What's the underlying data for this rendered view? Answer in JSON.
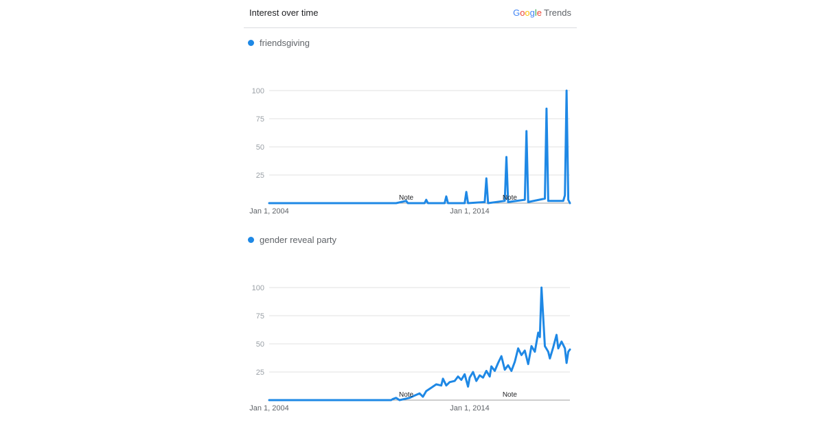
{
  "header": {
    "title": "Interest over time",
    "logo": {
      "letters": [
        {
          "ch": "G",
          "color": "#4285F4"
        },
        {
          "ch": "o",
          "color": "#EA4335"
        },
        {
          "ch": "o",
          "color": "#FBBC05"
        },
        {
          "ch": "g",
          "color": "#4285F4"
        },
        {
          "ch": "l",
          "color": "#34A853"
        },
        {
          "ch": "e",
          "color": "#EA4335"
        }
      ],
      "suffix": "Trends"
    }
  },
  "colors": {
    "series": "#1e88e5",
    "grid": "#e0e0e0",
    "axis": "#9e9e9e"
  },
  "chart_data": [
    {
      "type": "line",
      "title": "",
      "series": [
        {
          "name": "friendsgiving",
          "points": [
            [
              "2004-01",
              0
            ],
            [
              "2010-05",
              0
            ],
            [
              "2010-11",
              2
            ],
            [
              "2010-12",
              0
            ],
            [
              "2011-10",
              0
            ],
            [
              "2011-11",
              3
            ],
            [
              "2011-12",
              0
            ],
            [
              "2012-10",
              0
            ],
            [
              "2012-11",
              6
            ],
            [
              "2012-12",
              0
            ],
            [
              "2013-10",
              0
            ],
            [
              "2013-11",
              10
            ],
            [
              "2013-12",
              0
            ],
            [
              "2014-10",
              1
            ],
            [
              "2014-11",
              22
            ],
            [
              "2014-12",
              0
            ],
            [
              "2015-10",
              2
            ],
            [
              "2015-11",
              41
            ],
            [
              "2015-12",
              1
            ],
            [
              "2016-10",
              3
            ],
            [
              "2016-11",
              64
            ],
            [
              "2016-12",
              1
            ],
            [
              "2017-10",
              4
            ],
            [
              "2017-11",
              84
            ],
            [
              "2017-12",
              2
            ],
            [
              "2018-09",
              2
            ],
            [
              "2018-10",
              7
            ],
            [
              "2018-11",
              100
            ],
            [
              "2018-12",
              3
            ],
            [
              "2019-01",
              0
            ]
          ]
        }
      ],
      "yticks": [
        100,
        75,
        50,
        25
      ],
      "ylim": [
        0,
        100
      ],
      "xlim": [
        "2004-01",
        "2019-01"
      ],
      "xticks": [
        {
          "label": "Jan 1, 2004",
          "at": "2004-01"
        },
        {
          "label": "Jan 1, 2014",
          "at": "2014-01"
        }
      ],
      "notes": [
        {
          "label": "Note",
          "at": "2010-11"
        },
        {
          "label": "Note",
          "at": "2016-01"
        }
      ],
      "grid": true
    },
    {
      "type": "line",
      "title": "",
      "series": [
        {
          "name": "gender reveal party",
          "points": [
            [
              "2004-01",
              0
            ],
            [
              "2010-02",
              0
            ],
            [
              "2010-03",
              1
            ],
            [
              "2010-05",
              2
            ],
            [
              "2010-07",
              0
            ],
            [
              "2010-10",
              1
            ],
            [
              "2011-01",
              2
            ],
            [
              "2011-04",
              4
            ],
            [
              "2011-07",
              6
            ],
            [
              "2011-09",
              3
            ],
            [
              "2011-11",
              8
            ],
            [
              "2012-02",
              11
            ],
            [
              "2012-05",
              14
            ],
            [
              "2012-08",
              13
            ],
            [
              "2012-09",
              19
            ],
            [
              "2012-11",
              13
            ],
            [
              "2013-01",
              16
            ],
            [
              "2013-04",
              17
            ],
            [
              "2013-06",
              21
            ],
            [
              "2013-08",
              18
            ],
            [
              "2013-10",
              23
            ],
            [
              "2013-12",
              12
            ],
            [
              "2014-01",
              20
            ],
            [
              "2014-03",
              25
            ],
            [
              "2014-05",
              17
            ],
            [
              "2014-07",
              22
            ],
            [
              "2014-09",
              20
            ],
            [
              "2014-11",
              26
            ],
            [
              "2015-01",
              21
            ],
            [
              "2015-02",
              30
            ],
            [
              "2015-04",
              26
            ],
            [
              "2015-06",
              33
            ],
            [
              "2015-08",
              39
            ],
            [
              "2015-10",
              27
            ],
            [
              "2015-12",
              31
            ],
            [
              "2016-02",
              26
            ],
            [
              "2016-04",
              34
            ],
            [
              "2016-06",
              46
            ],
            [
              "2016-08",
              40
            ],
            [
              "2016-10",
              44
            ],
            [
              "2016-12",
              32
            ],
            [
              "2017-02",
              48
            ],
            [
              "2017-04",
              43
            ],
            [
              "2017-06",
              60
            ],
            [
              "2017-07",
              56
            ],
            [
              "2017-08",
              100
            ],
            [
              "2017-10",
              48
            ],
            [
              "2017-12",
              43
            ],
            [
              "2018-01",
              37
            ],
            [
              "2018-03",
              47
            ],
            [
              "2018-05",
              58
            ],
            [
              "2018-06",
              46
            ],
            [
              "2018-08",
              52
            ],
            [
              "2018-10",
              46
            ],
            [
              "2018-11",
              33
            ],
            [
              "2018-12",
              43
            ],
            [
              "2019-01",
              45
            ]
          ]
        }
      ],
      "yticks": [
        100,
        75,
        50,
        25
      ],
      "ylim": [
        0,
        100
      ],
      "xlim": [
        "2004-01",
        "2019-01"
      ],
      "xticks": [
        {
          "label": "Jan 1, 2004",
          "at": "2004-01"
        },
        {
          "label": "Jan 1, 2014",
          "at": "2014-01"
        }
      ],
      "notes": [
        {
          "label": "Note",
          "at": "2010-11"
        },
        {
          "label": "Note",
          "at": "2016-01"
        }
      ],
      "grid": true
    }
  ]
}
